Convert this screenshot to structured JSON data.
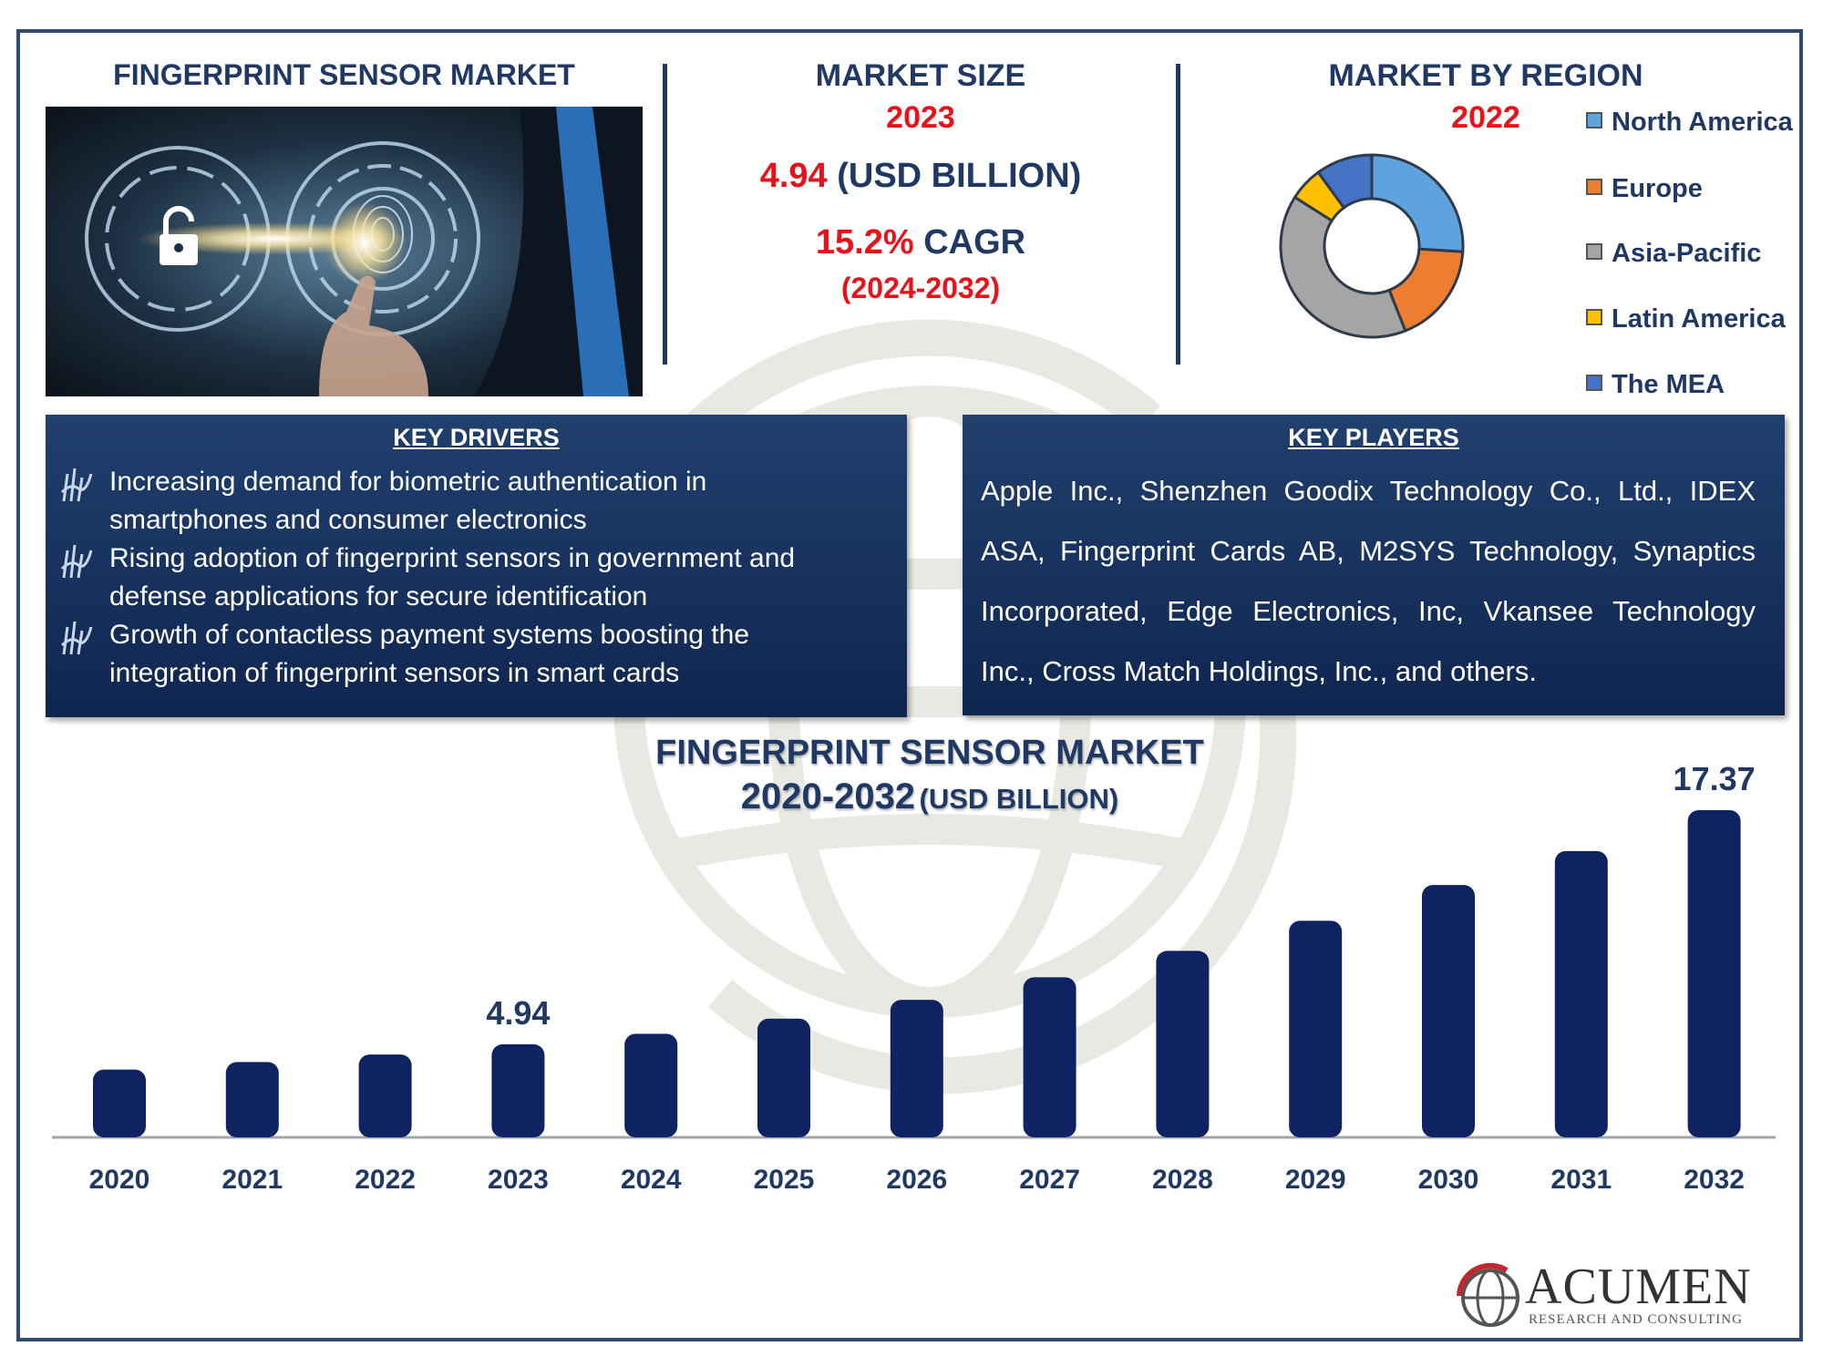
{
  "left_header": {
    "title": "FINGERPRINT SENSOR MARKET"
  },
  "market_size": {
    "title": "MARKET SIZE",
    "year": "2023",
    "value": "4.94",
    "unit": "(USD BILLION)",
    "cagr_value": "15.2%",
    "cagr_label": "CAGR",
    "cagr_period": "(2024-2032)"
  },
  "region": {
    "title": "MARKET BY REGION",
    "year": "2022",
    "legend": [
      {
        "label": "North America",
        "color": "#5ea3de"
      },
      {
        "label": "Europe",
        "color": "#ed7d31"
      },
      {
        "label": "Asia-Pacific",
        "color": "#a5a5a5"
      },
      {
        "label": "Latin America",
        "color": "#ffc000"
      },
      {
        "label": "The MEA",
        "color": "#4472c4"
      }
    ]
  },
  "key_drivers": {
    "title": "KEY DRIVERS",
    "items": [
      {
        "line1": "Increasing demand for biometric authentication in",
        "line2": "smartphones and consumer electronics"
      },
      {
        "line1": "Rising adoption of fingerprint sensors in government and",
        "line2": "defense applications for secure identification"
      },
      {
        "line1": "Growth of contactless payment systems boosting the",
        "line2": "integration of fingerprint sensors in smart cards"
      }
    ]
  },
  "key_players": {
    "title": "KEY PLAYERS",
    "text": "Apple Inc., Shenzhen Goodix Technology Co., Ltd., IDEX ASA, Fingerprint Cards AB, M2SYS Technology, Synaptics Incorporated, Edge Electronics, Inc, Vkansee Technology Inc., Cross Match Holdings, Inc., and others."
  },
  "logo": {
    "name": "ACUMEN",
    "tagline": "RESEARCH AND CONSULTING"
  },
  "chart_data": [
    {
      "type": "pie",
      "labels": [
        "North America",
        "Europe",
        "Asia-Pacific",
        "Latin America",
        "The MEA"
      ],
      "values": [
        26,
        18,
        40,
        6,
        10
      ],
      "colors": [
        "#5ea3de",
        "#ed7d31",
        "#a5a5a5",
        "#ffc000",
        "#4472c4"
      ],
      "title": "MARKET BY REGION",
      "subtitle": "2022",
      "legend": "right"
    },
    {
      "type": "bar",
      "title": "FINGERPRINT SENSOR MARKET",
      "subtitle_years": "2020-2032",
      "subtitle_unit": "(USD BILLION)",
      "categories": [
        "2020",
        "2021",
        "2022",
        "2023",
        "2024",
        "2025",
        "2026",
        "2027",
        "2028",
        "2029",
        "2030",
        "2031",
        "2032"
      ],
      "values": [
        3.6,
        4.0,
        4.4,
        4.94,
        5.5,
        6.3,
        7.3,
        8.5,
        9.9,
        11.5,
        13.4,
        15.2,
        17.37
      ],
      "labels": {
        "2023": "4.94",
        "2032": "17.37"
      },
      "ylim": [
        0,
        18
      ],
      "grid": false,
      "color": "#0f2362"
    }
  ]
}
